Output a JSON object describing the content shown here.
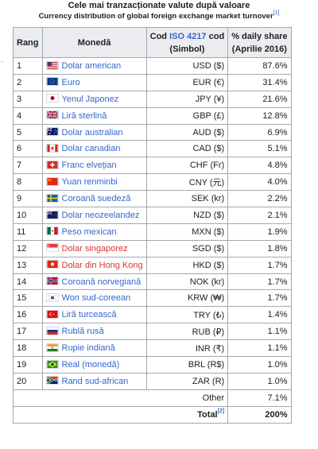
{
  "title": "Cele mai tranzacționate valute după valoare",
  "subtitle": "Currency distribution of global foreign exchange market turnover",
  "subtitle_ref": "[1]",
  "bullet": "·",
  "headers": {
    "rank": "Rang",
    "currency": "Monedă",
    "code_pre": "Cod ",
    "code_link": "ISO 4217",
    "code_post": " cod",
    "code_line2": "(Simbol)",
    "share_line1": "% daily share",
    "share_line2": "(Aprilie 2016)"
  },
  "rows": [
    {
      "rank": "1",
      "currency": "Dolar american",
      "code": "USD ($)",
      "share": "87.6%",
      "flag_icon": "us-flag-icon",
      "redlink": false
    },
    {
      "rank": "2",
      "currency": "Euro",
      "code": "EUR (€)",
      "share": "31.4%",
      "flag_icon": "eu-flag-icon",
      "redlink": false
    },
    {
      "rank": "3",
      "currency": "Yenul Japonez",
      "code": "JPY (¥)",
      "share": "21.6%",
      "flag_icon": "japan-flag-icon",
      "redlink": false
    },
    {
      "rank": "4",
      "currency": "Liră sterlină",
      "code": "GBP (£)",
      "share": "12.8%",
      "flag_icon": "uk-flag-icon",
      "redlink": false
    },
    {
      "rank": "5",
      "currency": "Dolar australian",
      "code": "AUD ($)",
      "share": "6.9%",
      "flag_icon": "australia-flag-icon",
      "redlink": false
    },
    {
      "rank": "6",
      "currency": "Dolar canadian",
      "code": "CAD ($)",
      "share": "5.1%",
      "flag_icon": "canada-flag-icon",
      "redlink": false
    },
    {
      "rank": "7",
      "currency": "Franc elvețian",
      "code": "CHF (Fr)",
      "share": "4.8%",
      "flag_icon": "switzerland-flag-icon",
      "redlink": false
    },
    {
      "rank": "8",
      "currency": "Yuan renminbi",
      "code": "CNY (元)",
      "share": "4.0%",
      "flag_icon": "china-flag-icon",
      "redlink": false
    },
    {
      "rank": "9",
      "currency": "Coroană suedeză",
      "code": "SEK (kr)",
      "share": "2.2%",
      "flag_icon": "sweden-flag-icon",
      "redlink": false
    },
    {
      "rank": "10",
      "currency": "Dolar neozeelandez",
      "code": "NZD ($)",
      "share": "2.1%",
      "flag_icon": "new-zealand-flag-icon",
      "redlink": false
    },
    {
      "rank": "11",
      "currency": "Peso mexican",
      "code": "MXN ($)",
      "share": "1.9%",
      "flag_icon": "mexico-flag-icon",
      "redlink": false
    },
    {
      "rank": "12",
      "currency": "Dolar singaporez",
      "code": "SGD ($)",
      "share": "1.8%",
      "flag_icon": "singapore-flag-icon",
      "redlink": true
    },
    {
      "rank": "13",
      "currency": "Dolar din Hong Kong",
      "code": "HKD ($)",
      "share": "1.7%",
      "flag_icon": "hong-kong-flag-icon",
      "redlink": true
    },
    {
      "rank": "14",
      "currency": "Coroană norvegiană",
      "code": "NOK (kr)",
      "share": "1.7%",
      "flag_icon": "norway-flag-icon",
      "redlink": false
    },
    {
      "rank": "15",
      "currency": "Won sud-coreean",
      "code": "KRW (₩)",
      "share": "1.7%",
      "flag_icon": "south-korea-flag-icon",
      "redlink": false
    },
    {
      "rank": "16",
      "currency": "Liră turcească",
      "code": "TRY (₺)",
      "share": "1.4%",
      "flag_icon": "turkey-flag-icon",
      "redlink": false
    },
    {
      "rank": "17",
      "currency": "Rublă rusă",
      "code": "RUB (₽)",
      "share": "1.1%",
      "flag_icon": "russia-flag-icon",
      "redlink": false
    },
    {
      "rank": "18",
      "currency": "Rupie indiană",
      "code": "INR (₹)",
      "share": "1.1%",
      "flag_icon": "india-flag-icon",
      "redlink": false
    },
    {
      "rank": "19",
      "currency": "Real (monedă)",
      "code": "BRL (R$)",
      "share": "1.0%",
      "flag_icon": "brazil-flag-icon",
      "redlink": false
    },
    {
      "rank": "20",
      "currency": "Rand sud-african",
      "code": "ZAR (R)",
      "share": "1.0%",
      "flag_icon": "south-africa-flag-icon",
      "redlink": false
    }
  ],
  "other": {
    "label": "Other",
    "share": "7.1%"
  },
  "total": {
    "label": "Total",
    "ref": "[2]",
    "share": "200%"
  },
  "colors": {
    "link": "#3366cc",
    "redlink": "#d33333",
    "header_bg": "#eaecf0",
    "border": "#a2a9b1"
  }
}
